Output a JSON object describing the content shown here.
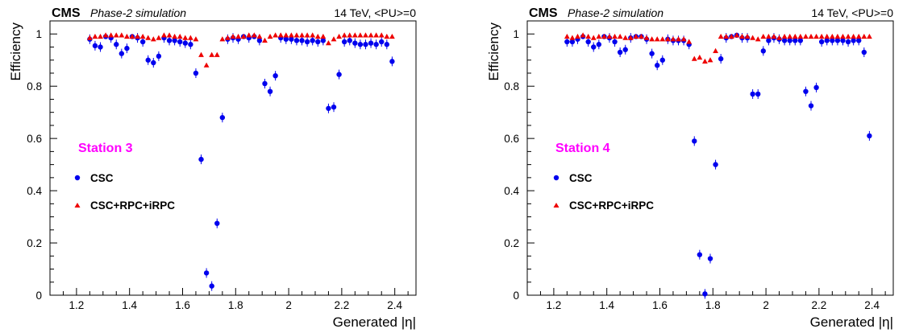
{
  "colors": {
    "csc": "#0000ee",
    "irpc": "#ee0000",
    "station": "#ff00ff",
    "axis": "#000000"
  },
  "chart_data": [
    {
      "type": "scatter",
      "experiment": "CMS",
      "subtitle": "Phase-2 simulation",
      "energy": "14 TeV, <PU>=0",
      "xlabel": "Generated |η|",
      "ylabel": "Efficiency",
      "station_label": "Station 3",
      "xlim": [
        1.1,
        2.48
      ],
      "ylim": [
        0,
        1.05
      ],
      "x_ticks": [
        "1.2",
        "1.4",
        "1.6",
        "1.8",
        "2",
        "2.2",
        "2.4"
      ],
      "y_ticks": [
        "0",
        "0.2",
        "0.4",
        "0.6",
        "0.8",
        "1"
      ],
      "grid": false,
      "legend_position": "middle-left",
      "series": [
        {
          "name": "CSC",
          "marker": "circle",
          "color": "#0000ee",
          "x": [
            1.25,
            1.27,
            1.29,
            1.31,
            1.33,
            1.35,
            1.37,
            1.39,
            1.41,
            1.43,
            1.45,
            1.47,
            1.49,
            1.51,
            1.53,
            1.55,
            1.57,
            1.59,
            1.61,
            1.63,
            1.65,
            1.67,
            1.69,
            1.71,
            1.73,
            1.75,
            1.77,
            1.79,
            1.81,
            1.83,
            1.85,
            1.87,
            1.89,
            1.91,
            1.93,
            1.95,
            1.97,
            1.99,
            2.01,
            2.03,
            2.05,
            2.07,
            2.09,
            2.11,
            2.13,
            2.15,
            2.17,
            2.19,
            2.21,
            2.23,
            2.25,
            2.27,
            2.29,
            2.31,
            2.33,
            2.35,
            2.37,
            2.39
          ],
          "y": [
            0.98,
            0.955,
            0.95,
            0.99,
            0.985,
            0.96,
            0.925,
            0.945,
            0.99,
            0.985,
            0.97,
            0.9,
            0.89,
            0.915,
            0.985,
            0.975,
            0.975,
            0.97,
            0.965,
            0.96,
            0.85,
            0.52,
            0.085,
            0.035,
            0.275,
            0.68,
            0.98,
            0.985,
            0.98,
            0.99,
            0.985,
            0.99,
            0.975,
            0.81,
            0.78,
            0.84,
            0.985,
            0.98,
            0.98,
            0.975,
            0.975,
            0.97,
            0.975,
            0.97,
            0.975,
            0.715,
            0.72,
            0.845,
            0.97,
            0.975,
            0.965,
            0.96,
            0.96,
            0.965,
            0.96,
            0.97,
            0.96,
            0.895
          ]
        },
        {
          "name": "CSC+RPC+iRPC",
          "marker": "triangle",
          "color": "#ee0000",
          "x": [
            1.25,
            1.27,
            1.29,
            1.31,
            1.33,
            1.35,
            1.37,
            1.39,
            1.41,
            1.43,
            1.45,
            1.47,
            1.49,
            1.51,
            1.53,
            1.55,
            1.57,
            1.59,
            1.61,
            1.63,
            1.65,
            1.67,
            1.69,
            1.71,
            1.73,
            1.75,
            1.77,
            1.79,
            1.81,
            1.83,
            1.85,
            1.87,
            1.89,
            1.91,
            1.93,
            1.95,
            1.97,
            1.99,
            2.01,
            2.03,
            2.05,
            2.07,
            2.09,
            2.11,
            2.13,
            2.15,
            2.17,
            2.19,
            2.21,
            2.23,
            2.25,
            2.27,
            2.29,
            2.31,
            2.33,
            2.35,
            2.37,
            2.39
          ],
          "y": [
            0.985,
            0.99,
            0.99,
            0.995,
            0.995,
            0.995,
            0.995,
            0.99,
            0.99,
            0.99,
            0.99,
            0.985,
            0.98,
            0.985,
            0.995,
            0.995,
            0.99,
            0.99,
            0.985,
            0.985,
            0.98,
            0.92,
            0.88,
            0.92,
            0.92,
            0.98,
            0.985,
            0.99,
            0.99,
            0.99,
            0.995,
            0.995,
            0.99,
            0.975,
            0.99,
            0.995,
            0.995,
            0.995,
            0.995,
            0.995,
            0.995,
            0.995,
            0.995,
            0.99,
            0.99,
            0.965,
            0.98,
            0.99,
            0.995,
            0.995,
            0.995,
            0.995,
            0.995,
            0.995,
            0.995,
            0.995,
            0.99,
            0.99
          ]
        }
      ]
    },
    {
      "type": "scatter",
      "experiment": "CMS",
      "subtitle": "Phase-2 simulation",
      "energy": "14 TeV, <PU>=0",
      "xlabel": "Generated |η|",
      "ylabel": "Efficiency",
      "station_label": "Station 4",
      "xlim": [
        1.1,
        2.48
      ],
      "ylim": [
        0,
        1.05
      ],
      "x_ticks": [
        "1.2",
        "1.4",
        "1.6",
        "1.8",
        "2",
        "2.2",
        "2.4"
      ],
      "y_ticks": [
        "0",
        "0.2",
        "0.4",
        "0.6",
        "0.8",
        "1"
      ],
      "grid": false,
      "legend_position": "middle-left",
      "series": [
        {
          "name": "CSC",
          "marker": "circle",
          "color": "#0000ee",
          "x": [
            1.25,
            1.27,
            1.29,
            1.31,
            1.33,
            1.35,
            1.37,
            1.39,
            1.41,
            1.43,
            1.45,
            1.47,
            1.49,
            1.51,
            1.53,
            1.55,
            1.57,
            1.59,
            1.61,
            1.63,
            1.65,
            1.67,
            1.69,
            1.71,
            1.73,
            1.75,
            1.77,
            1.79,
            1.81,
            1.83,
            1.85,
            1.87,
            1.89,
            1.91,
            1.93,
            1.95,
            1.97,
            1.99,
            2.01,
            2.03,
            2.05,
            2.07,
            2.09,
            2.11,
            2.13,
            2.15,
            2.17,
            2.19,
            2.21,
            2.23,
            2.25,
            2.27,
            2.29,
            2.31,
            2.33,
            2.35,
            2.37,
            2.39
          ],
          "y": [
            0.97,
            0.97,
            0.98,
            0.99,
            0.97,
            0.95,
            0.96,
            0.99,
            0.985,
            0.97,
            0.93,
            0.94,
            0.985,
            0.99,
            0.99,
            0.98,
            0.925,
            0.88,
            0.9,
            0.98,
            0.975,
            0.975,
            0.975,
            0.96,
            0.59,
            0.155,
            0.005,
            0.14,
            0.5,
            0.905,
            0.985,
            0.99,
            0.995,
            0.985,
            0.985,
            0.77,
            0.77,
            0.935,
            0.975,
            0.985,
            0.98,
            0.975,
            0.975,
            0.975,
            0.975,
            0.78,
            0.725,
            0.795,
            0.97,
            0.975,
            0.975,
            0.975,
            0.975,
            0.97,
            0.975,
            0.975,
            0.93,
            0.61
          ]
        },
        {
          "name": "CSC+RPC+iRPC",
          "marker": "triangle",
          "color": "#ee0000",
          "x": [
            1.25,
            1.27,
            1.29,
            1.31,
            1.33,
            1.35,
            1.37,
            1.39,
            1.41,
            1.43,
            1.45,
            1.47,
            1.49,
            1.51,
            1.53,
            1.55,
            1.57,
            1.59,
            1.61,
            1.63,
            1.65,
            1.67,
            1.69,
            1.71,
            1.73,
            1.75,
            1.77,
            1.79,
            1.81,
            1.83,
            1.85,
            1.87,
            1.89,
            1.91,
            1.93,
            1.95,
            1.97,
            1.99,
            2.01,
            2.03,
            2.05,
            2.07,
            2.09,
            2.11,
            2.13,
            2.15,
            2.17,
            2.19,
            2.21,
            2.23,
            2.25,
            2.27,
            2.29,
            2.31,
            2.33,
            2.35,
            2.37,
            2.39
          ],
          "y": [
            0.99,
            0.985,
            0.99,
            0.995,
            0.99,
            0.985,
            0.99,
            0.99,
            0.99,
            0.99,
            0.99,
            0.985,
            0.985,
            0.99,
            0.99,
            0.985,
            0.98,
            0.98,
            0.98,
            0.98,
            0.98,
            0.98,
            0.98,
            0.97,
            0.905,
            0.91,
            0.895,
            0.9,
            0.935,
            0.99,
            0.99,
            0.99,
            0.995,
            0.99,
            0.99,
            0.985,
            0.98,
            0.99,
            0.99,
            0.99,
            0.985,
            0.99,
            0.99,
            0.99,
            0.99,
            0.99,
            0.99,
            0.99,
            0.99,
            0.99,
            0.99,
            0.99,
            0.99,
            0.99,
            0.99,
            0.99,
            0.99,
            0.99
          ]
        }
      ]
    }
  ]
}
